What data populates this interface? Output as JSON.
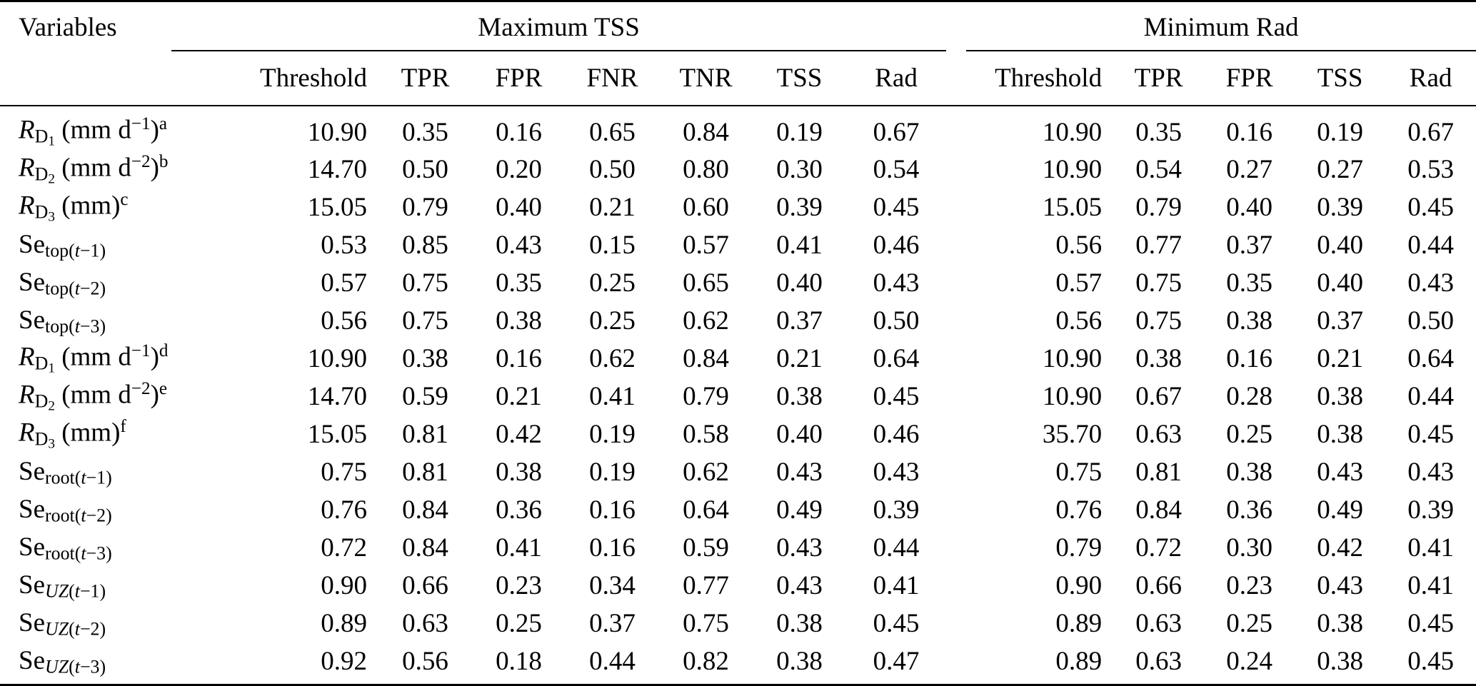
{
  "page": {
    "background": "#ffffff",
    "text_color": "#000000",
    "rule_color": "#000000"
  },
  "table": {
    "variables_header": "Variables",
    "groups": [
      {
        "label": "Maximum TSS",
        "columns": [
          "Threshold",
          "TPR",
          "FPR",
          "FNR",
          "TNR",
          "TSS",
          "Rad"
        ]
      },
      {
        "label": "Minimum Rad",
        "columns": [
          "Threshold",
          "TPR",
          "FPR",
          "TSS",
          "Rad"
        ]
      }
    ],
    "rows": [
      {
        "name": "R_D1 (mm d^-1)^a",
        "label": [
          {
            "t": "R",
            "s": "i"
          },
          {
            "t": "D",
            "s": "sub"
          },
          {
            "t": "1",
            "s": "sub2"
          },
          {
            "t": " (mm d",
            "s": "n"
          },
          {
            "t": "−1",
            "s": "sup"
          },
          {
            "t": ")",
            "s": "n"
          },
          {
            "t": "a",
            "s": "sup"
          }
        ],
        "max_tss": [
          "10.90",
          "0.35",
          "0.16",
          "0.65",
          "0.84",
          "0.19",
          "0.67"
        ],
        "min_rad": [
          "10.90",
          "0.35",
          "0.16",
          "0.19",
          "0.67"
        ]
      },
      {
        "name": "R_D2 (mm d^-2)^b",
        "label": [
          {
            "t": "R",
            "s": "i"
          },
          {
            "t": "D",
            "s": "sub"
          },
          {
            "t": "2",
            "s": "sub2"
          },
          {
            "t": " (mm d",
            "s": "n"
          },
          {
            "t": "−2",
            "s": "sup"
          },
          {
            "t": ")",
            "s": "n"
          },
          {
            "t": "b",
            "s": "sup"
          }
        ],
        "max_tss": [
          "14.70",
          "0.50",
          "0.20",
          "0.50",
          "0.80",
          "0.30",
          "0.54"
        ],
        "min_rad": [
          "10.90",
          "0.54",
          "0.27",
          "0.27",
          "0.53"
        ]
      },
      {
        "name": "R_D3 (mm)^c",
        "label": [
          {
            "t": "R",
            "s": "i"
          },
          {
            "t": "D",
            "s": "sub"
          },
          {
            "t": "3",
            "s": "sub2"
          },
          {
            "t": " (mm)",
            "s": "n"
          },
          {
            "t": "c",
            "s": "sup"
          }
        ],
        "max_tss": [
          "15.05",
          "0.79",
          "0.40",
          "0.21",
          "0.60",
          "0.39",
          "0.45"
        ],
        "min_rad": [
          "15.05",
          "0.79",
          "0.40",
          "0.39",
          "0.45"
        ]
      },
      {
        "name": "Se_top(t-1)",
        "label": [
          {
            "t": "Se",
            "s": "n"
          },
          {
            "t": "top(",
            "s": "sub"
          },
          {
            "t": "t",
            "s": "subi"
          },
          {
            "t": "−1)",
            "s": "sub"
          }
        ],
        "max_tss": [
          "0.53",
          "0.85",
          "0.43",
          "0.15",
          "0.57",
          "0.41",
          "0.46"
        ],
        "min_rad": [
          "0.56",
          "0.77",
          "0.37",
          "0.40",
          "0.44"
        ]
      },
      {
        "name": "Se_top(t-2)",
        "label": [
          {
            "t": "Se",
            "s": "n"
          },
          {
            "t": "top(",
            "s": "sub"
          },
          {
            "t": "t",
            "s": "subi"
          },
          {
            "t": "−2)",
            "s": "sub"
          }
        ],
        "max_tss": [
          "0.57",
          "0.75",
          "0.35",
          "0.25",
          "0.65",
          "0.40",
          "0.43"
        ],
        "min_rad": [
          "0.57",
          "0.75",
          "0.35",
          "0.40",
          "0.43"
        ]
      },
      {
        "name": "Se_top(t-3)",
        "label": [
          {
            "t": "Se",
            "s": "n"
          },
          {
            "t": "top(",
            "s": "sub"
          },
          {
            "t": "t",
            "s": "subi"
          },
          {
            "t": "−3)",
            "s": "sub"
          }
        ],
        "max_tss": [
          "0.56",
          "0.75",
          "0.38",
          "0.25",
          "0.62",
          "0.37",
          "0.50"
        ],
        "min_rad": [
          "0.56",
          "0.75",
          "0.38",
          "0.37",
          "0.50"
        ]
      },
      {
        "name": "R_D1 (mm d^-1)^d",
        "label": [
          {
            "t": "R",
            "s": "i"
          },
          {
            "t": "D",
            "s": "sub"
          },
          {
            "t": "1",
            "s": "sub2"
          },
          {
            "t": " (mm d",
            "s": "n"
          },
          {
            "t": "−1",
            "s": "sup"
          },
          {
            "t": ")",
            "s": "n"
          },
          {
            "t": "d",
            "s": "sup"
          }
        ],
        "max_tss": [
          "10.90",
          "0.38",
          "0.16",
          "0.62",
          "0.84",
          "0.21",
          "0.64"
        ],
        "min_rad": [
          "10.90",
          "0.38",
          "0.16",
          "0.21",
          "0.64"
        ]
      },
      {
        "name": "R_D2 (mm d^-2)^e",
        "label": [
          {
            "t": "R",
            "s": "i"
          },
          {
            "t": "D",
            "s": "sub"
          },
          {
            "t": "2",
            "s": "sub2"
          },
          {
            "t": " (mm d",
            "s": "n"
          },
          {
            "t": "−2",
            "s": "sup"
          },
          {
            "t": ")",
            "s": "n"
          },
          {
            "t": "e",
            "s": "sup"
          }
        ],
        "max_tss": [
          "14.70",
          "0.59",
          "0.21",
          "0.41",
          "0.79",
          "0.38",
          "0.45"
        ],
        "min_rad": [
          "10.90",
          "0.67",
          "0.28",
          "0.38",
          "0.44"
        ]
      },
      {
        "name": "R_D3 (mm)^f",
        "label": [
          {
            "t": "R",
            "s": "i"
          },
          {
            "t": "D",
            "s": "sub"
          },
          {
            "t": "3",
            "s": "sub2"
          },
          {
            "t": " (mm)",
            "s": "n"
          },
          {
            "t": "f",
            "s": "sup"
          }
        ],
        "max_tss": [
          "15.05",
          "0.81",
          "0.42",
          "0.19",
          "0.58",
          "0.40",
          "0.46"
        ],
        "min_rad": [
          "35.70",
          "0.63",
          "0.25",
          "0.38",
          "0.45"
        ]
      },
      {
        "name": "Se_root(t-1)",
        "label": [
          {
            "t": "Se",
            "s": "n"
          },
          {
            "t": "root(",
            "s": "sub"
          },
          {
            "t": "t",
            "s": "subi"
          },
          {
            "t": "−1)",
            "s": "sub"
          }
        ],
        "max_tss": [
          "0.75",
          "0.81",
          "0.38",
          "0.19",
          "0.62",
          "0.43",
          "0.43"
        ],
        "min_rad": [
          "0.75",
          "0.81",
          "0.38",
          "0.43",
          "0.43"
        ]
      },
      {
        "name": "Se_root(t-2)",
        "label": [
          {
            "t": "Se",
            "s": "n"
          },
          {
            "t": "root(",
            "s": "sub"
          },
          {
            "t": "t",
            "s": "subi"
          },
          {
            "t": "−2)",
            "s": "sub"
          }
        ],
        "max_tss": [
          "0.76",
          "0.84",
          "0.36",
          "0.16",
          "0.64",
          "0.49",
          "0.39"
        ],
        "min_rad": [
          "0.76",
          "0.84",
          "0.36",
          "0.49",
          "0.39"
        ]
      },
      {
        "name": "Se_root(t-3)",
        "label": [
          {
            "t": "Se",
            "s": "n"
          },
          {
            "t": "root(",
            "s": "sub"
          },
          {
            "t": "t",
            "s": "subi"
          },
          {
            "t": "−3)",
            "s": "sub"
          }
        ],
        "max_tss": [
          "0.72",
          "0.84",
          "0.41",
          "0.16",
          "0.59",
          "0.43",
          "0.44"
        ],
        "min_rad": [
          "0.79",
          "0.72",
          "0.30",
          "0.42",
          "0.41"
        ]
      },
      {
        "name": "Se_UZ(t-1)",
        "label": [
          {
            "t": "Se",
            "s": "n"
          },
          {
            "t": "UZ",
            "s": "subi"
          },
          {
            "t": "(",
            "s": "sub"
          },
          {
            "t": "t",
            "s": "subi"
          },
          {
            "t": "−1)",
            "s": "sub"
          }
        ],
        "max_tss": [
          "0.90",
          "0.66",
          "0.23",
          "0.34",
          "0.77",
          "0.43",
          "0.41"
        ],
        "min_rad": [
          "0.90",
          "0.66",
          "0.23",
          "0.43",
          "0.41"
        ]
      },
      {
        "name": "Se_UZ(t-2)",
        "label": [
          {
            "t": "Se",
            "s": "n"
          },
          {
            "t": "UZ",
            "s": "subi"
          },
          {
            "t": "(",
            "s": "sub"
          },
          {
            "t": "t",
            "s": "subi"
          },
          {
            "t": "−2)",
            "s": "sub"
          }
        ],
        "max_tss": [
          "0.89",
          "0.63",
          "0.25",
          "0.37",
          "0.75",
          "0.38",
          "0.45"
        ],
        "min_rad": [
          "0.89",
          "0.63",
          "0.25",
          "0.38",
          "0.45"
        ]
      },
      {
        "name": "Se_UZ(t-3)",
        "label": [
          {
            "t": "Se",
            "s": "n"
          },
          {
            "t": "UZ",
            "s": "subi"
          },
          {
            "t": "(",
            "s": "sub"
          },
          {
            "t": "t",
            "s": "subi"
          },
          {
            "t": "−3)",
            "s": "sub"
          }
        ],
        "max_tss": [
          "0.92",
          "0.56",
          "0.18",
          "0.44",
          "0.82",
          "0.38",
          "0.47"
        ],
        "min_rad": [
          "0.89",
          "0.63",
          "0.24",
          "0.38",
          "0.45"
        ]
      }
    ]
  }
}
